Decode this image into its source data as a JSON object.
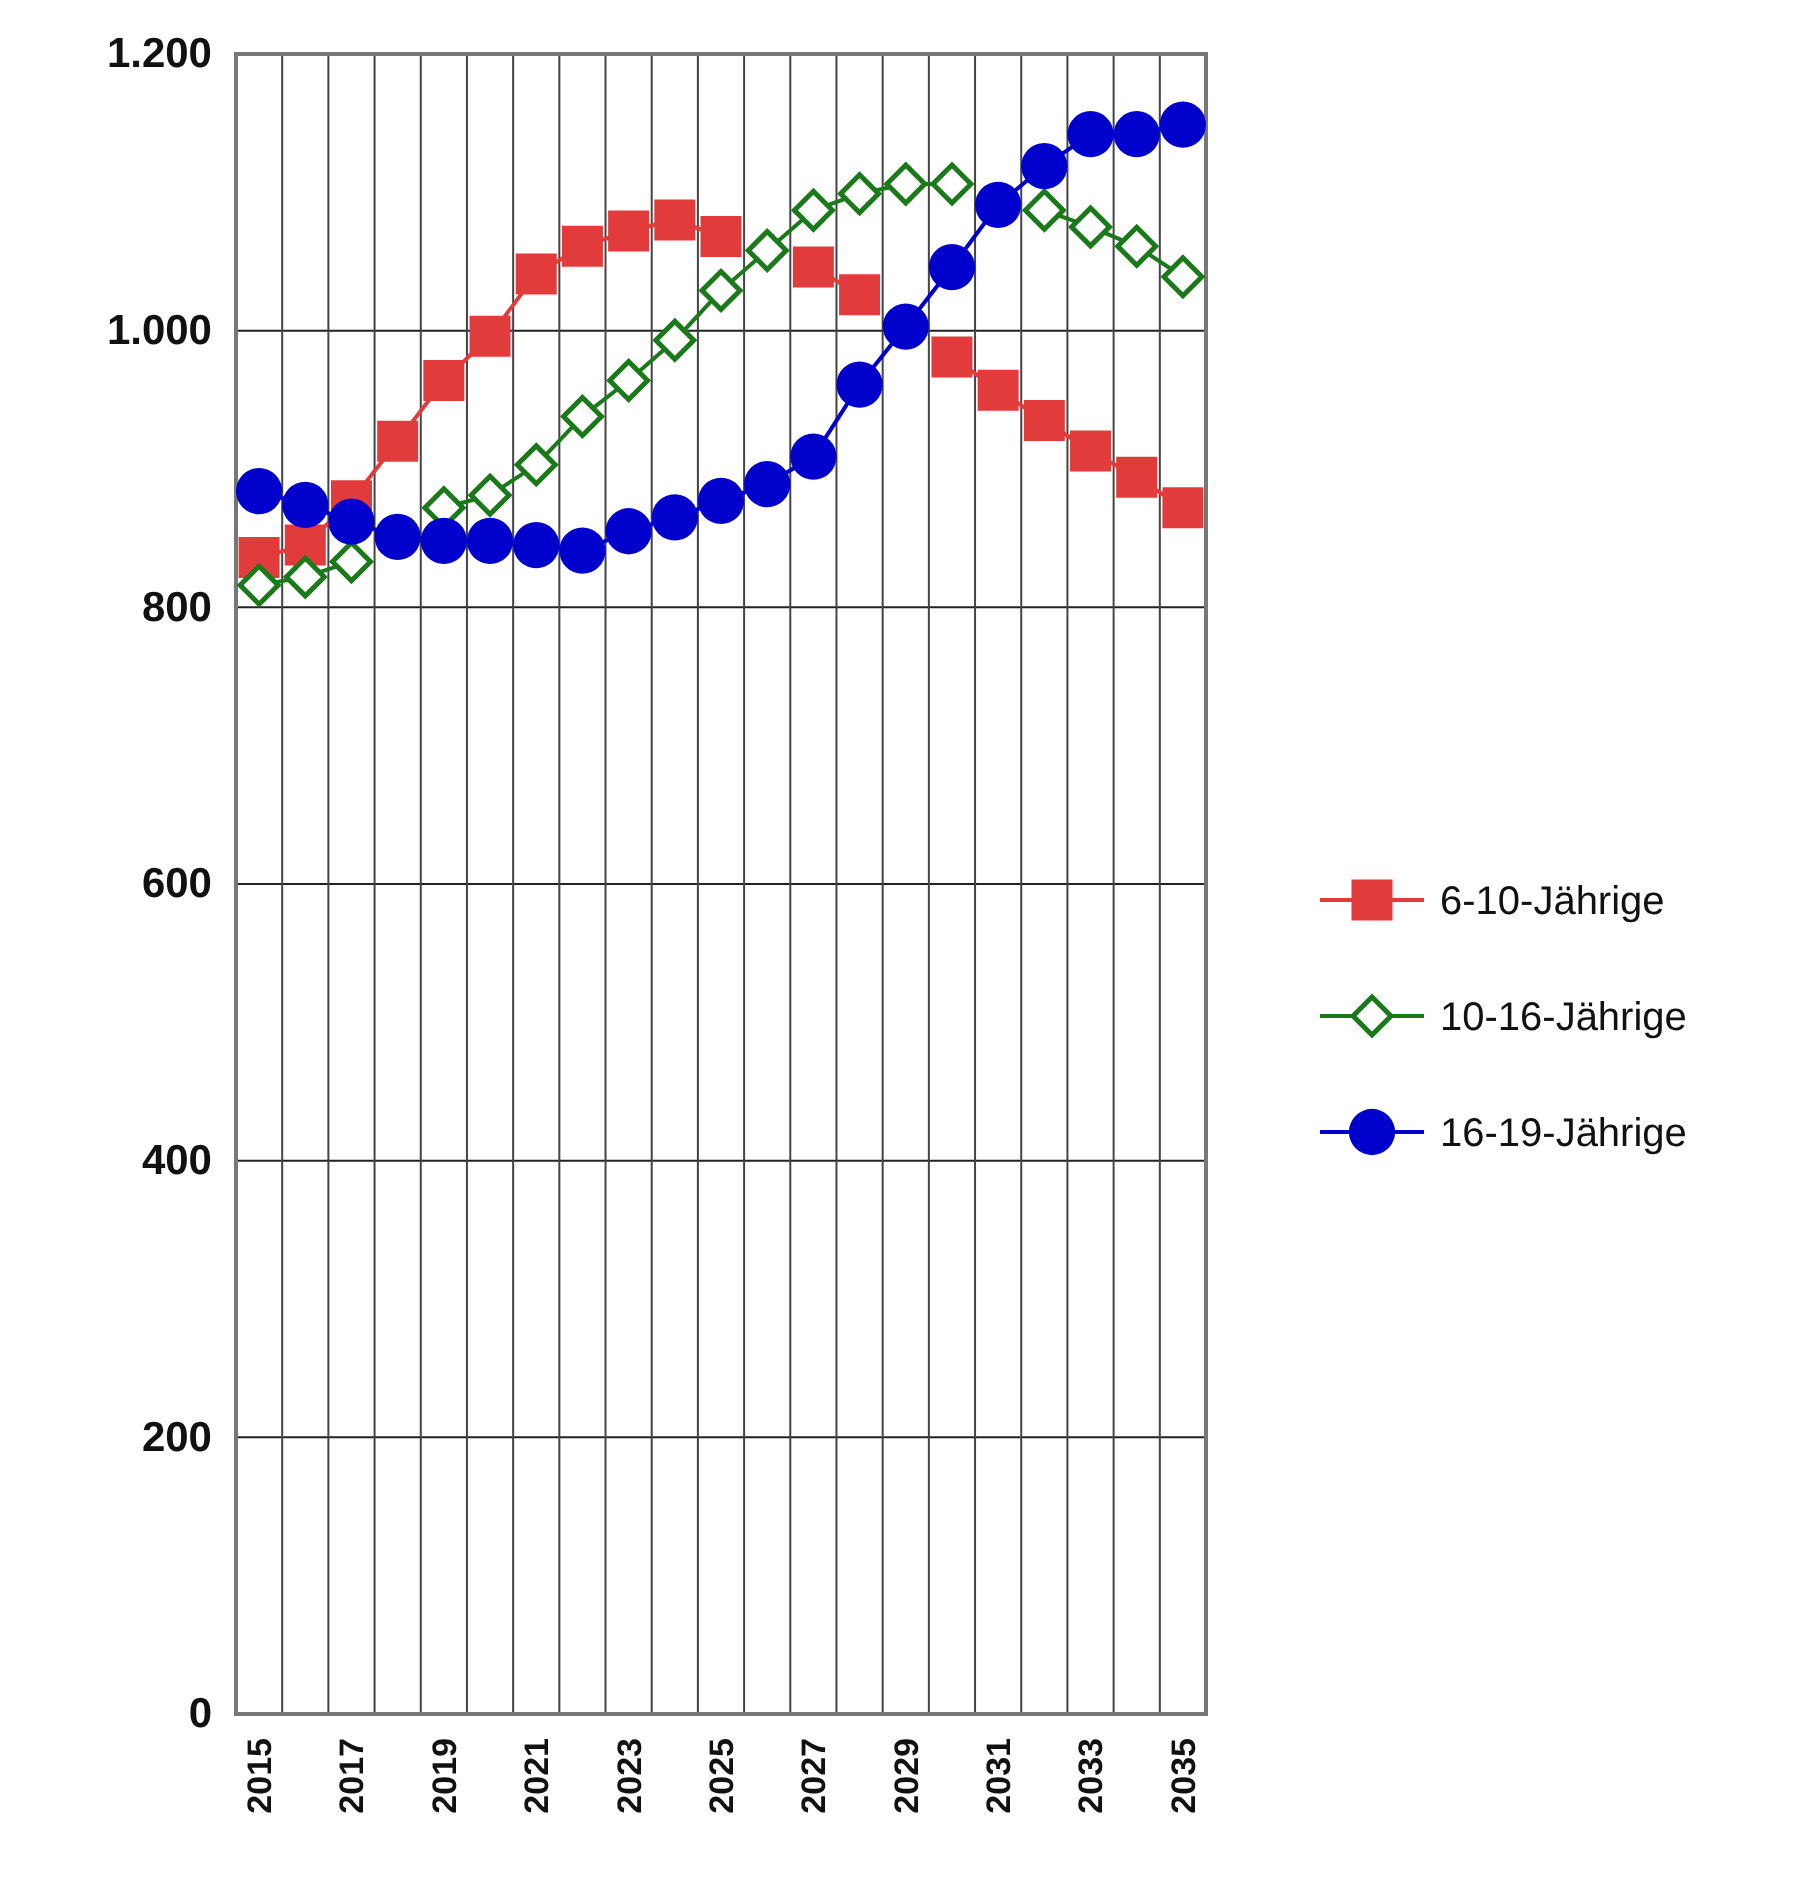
{
  "chart_data": {
    "type": "line",
    "categories": [
      "2015",
      null,
      "2017",
      null,
      "2019",
      null,
      "2021",
      null,
      "2023",
      null,
      "2025",
      null,
      "2027",
      null,
      "2029",
      null,
      "2031",
      null,
      "2033",
      null,
      "2035"
    ],
    "series": [
      {
        "name": "6-10-Jährige",
        "color": "#e23b3b",
        "marker": "square",
        "values": [
          836,
          845,
          877,
          920,
          964,
          996,
          1041,
          1061,
          1072,
          1080,
          1068,
          null,
          1046,
          1026,
          null,
          981,
          957,
          935,
          913,
          894,
          872
        ]
      },
      {
        "name": "10-16-Jährige",
        "color": "#1a7a1a",
        "marker": "diamond",
        "values": [
          816,
          822,
          833,
          null,
          872,
          881,
          903,
          938,
          964,
          993,
          1029,
          1058,
          1087,
          1099,
          1106,
          1106,
          null,
          1087,
          1075,
          1061,
          1039
        ]
      },
      {
        "name": "16-19-Jährige",
        "color": "#0000cc",
        "marker": "circle",
        "values": [
          884,
          874,
          862,
          851,
          848,
          848,
          845,
          841,
          855,
          865,
          877,
          889,
          909,
          961,
          1003,
          1046,
          1091,
          1119,
          1142,
          1142,
          1149
        ]
      }
    ],
    "ylim": [
      0,
      1200
    ],
    "yticks": [
      0,
      200,
      400,
      600,
      800,
      {
        "value": 1000,
        "label": "1.000"
      },
      {
        "value": 1200,
        "label": "1.200"
      }
    ],
    "grid": true,
    "legend": "right",
    "line_style": "solid"
  }
}
